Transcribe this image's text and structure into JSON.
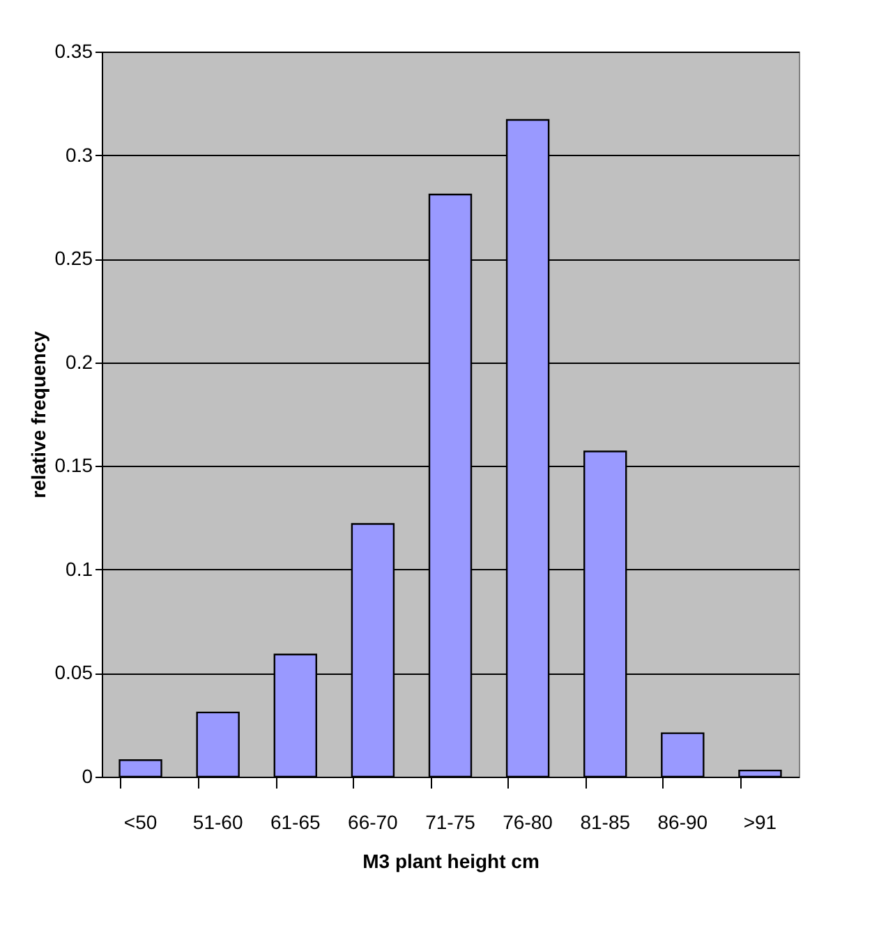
{
  "chart_data": {
    "type": "bar",
    "xlabel": "M3 plant height cm",
    "ylabel": "relative frequency",
    "categories": [
      "<50",
      "51-60",
      "61-65",
      "66-70",
      "71-75",
      "76-80",
      "81-85",
      "86-90",
      ">91"
    ],
    "values": [
      0.008,
      0.031,
      0.059,
      0.122,
      0.281,
      0.317,
      0.157,
      0.021,
      0.003
    ],
    "color": "#9999ff",
    "ylim": [
      0,
      0.35
    ],
    "yticks": [
      0,
      0.05,
      0.1,
      0.15,
      0.2,
      0.25,
      0.3,
      0.35
    ],
    "grid": "y"
  }
}
